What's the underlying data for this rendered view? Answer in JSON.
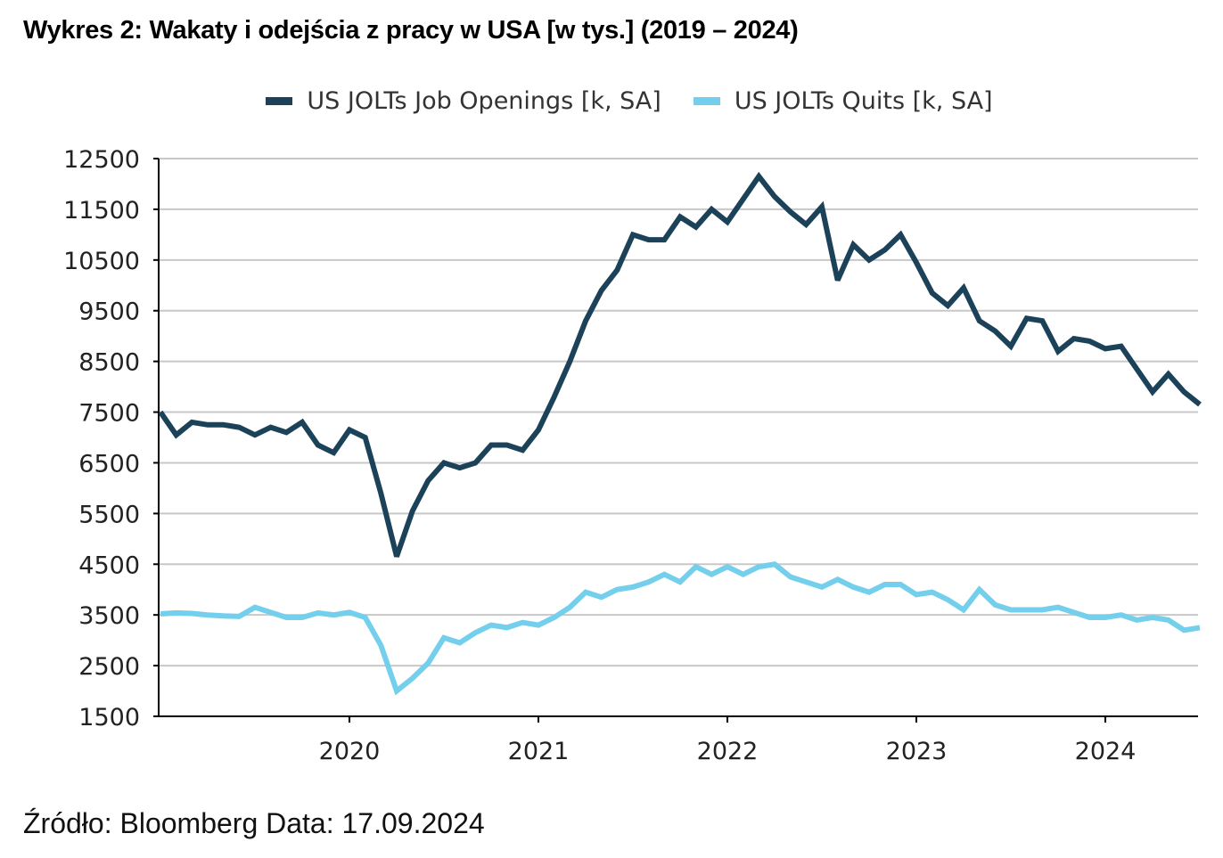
{
  "title": "Wykres 2: Wakaty i odejścia z pracy w USA [w tys.] (2019 – 2024)",
  "source": "Źródło: Bloomberg Data: 17.09.2024",
  "chart_data": {
    "type": "line",
    "title": "Wykres 2: Wakaty i odejścia z pracy w USA [w tys.] (2019 – 2024)",
    "x_start": "2019-01",
    "x_end": "2024-07",
    "x_frequency": "monthly",
    "xtick_labels": [
      "2020",
      "2021",
      "2022",
      "2023",
      "2024"
    ],
    "ytick_labels": [
      "12500",
      "11500",
      "10500",
      "9500",
      "8500",
      "7500",
      "6500",
      "5500",
      "4500",
      "3500",
      "2500",
      "1500"
    ],
    "ylim": [
      1500,
      12500
    ],
    "grid": "horizontal",
    "legend_position": "top",
    "series": [
      {
        "name": "US JOLTs Job Openings [k, SA]",
        "color": "#1c4259",
        "values": [
          7500,
          7050,
          7300,
          7250,
          7250,
          7200,
          7050,
          7200,
          7100,
          7300,
          6850,
          6700,
          7150,
          7000,
          5900,
          4650,
          5550,
          6150,
          6500,
          6400,
          6500,
          6850,
          6850,
          6750,
          7150,
          7800,
          8500,
          9300,
          9900,
          10300,
          11000,
          10900,
          10900,
          11350,
          11150,
          11500,
          11250,
          11700,
          12150,
          11750,
          11450,
          11200,
          11550,
          10100,
          10800,
          10500,
          10700,
          11000,
          10450,
          9850,
          9600,
          9950,
          9300,
          9100,
          8800,
          9350,
          9300,
          8700,
          8950,
          8900,
          8750,
          8800,
          8350,
          7900,
          8250,
          7900,
          7650
        ]
      },
      {
        "name": "US JOLTs Quits [k, SA]",
        "color": "#74cfec",
        "values": [
          3520,
          3540,
          3530,
          3500,
          3480,
          3470,
          3650,
          3550,
          3450,
          3450,
          3540,
          3500,
          3550,
          3450,
          2900,
          2000,
          2250,
          2550,
          3050,
          2950,
          3150,
          3300,
          3250,
          3350,
          3300,
          3450,
          3650,
          3950,
          3850,
          4000,
          4050,
          4150,
          4300,
          4150,
          4450,
          4300,
          4450,
          4300,
          4450,
          4500,
          4250,
          4150,
          4050,
          4200,
          4050,
          3950,
          4100,
          4100,
          3900,
          3950,
          3800,
          3600,
          4000,
          3700,
          3600,
          3600,
          3600,
          3650,
          3550,
          3450,
          3450,
          3500,
          3400,
          3450,
          3400,
          3200,
          3250
        ]
      }
    ]
  }
}
